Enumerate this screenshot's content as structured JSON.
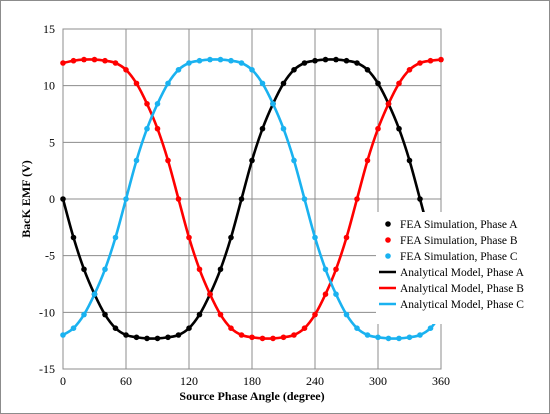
{
  "chart_data": {
    "type": "line",
    "title": "",
    "xlabel": "Source Phase Angle (degree)",
    "ylabel": "BacK EMF (V)",
    "xlim": [
      0,
      360
    ],
    "ylim": [
      -15,
      15
    ],
    "x_ticks": [
      0,
      60,
      120,
      180,
      240,
      300,
      360
    ],
    "x_tick_labels": [
      "0",
      "60",
      "120",
      "180",
      "240",
      "300",
      "360"
    ],
    "y_ticks": [
      15,
      10,
      5,
      0,
      -5,
      -10,
      -15
    ],
    "y_tick_labels": [
      "15",
      "10",
      "5",
      "0",
      "-5",
      "-10",
      "-15"
    ],
    "grid": true,
    "legend_position": "lower-right",
    "x": [
      0,
      10,
      20,
      30,
      40,
      50,
      60,
      70,
      80,
      90,
      100,
      110,
      120,
      130,
      140,
      150,
      160,
      170,
      180,
      190,
      200,
      210,
      220,
      230,
      240,
      250,
      260,
      270,
      280,
      290,
      300,
      310,
      320,
      330,
      340,
      350,
      360
    ],
    "series": [
      {
        "name": "FEA Simulation, Phase A",
        "style": "markers",
        "color": "#000000",
        "values": [
          0,
          -3.4,
          -6.2,
          -8.4,
          -10.2,
          -11.4,
          -12,
          -12.2,
          -12.3,
          -12.3,
          -12.2,
          -12,
          -11.4,
          -10.2,
          -8.4,
          -6.2,
          -3.4,
          0,
          3.4,
          6.2,
          8.4,
          10.2,
          11.4,
          12,
          12.2,
          12.3,
          12.3,
          12.2,
          12,
          11.4,
          10.2,
          8.4,
          6.2,
          3.4,
          0,
          -3.4,
          -6.2
        ]
      },
      {
        "name": "FEA Simulation, Phase B",
        "style": "markers",
        "color": "#ff0000",
        "values": [
          12,
          12.2,
          12.3,
          12.3,
          12.2,
          12,
          11.4,
          10.2,
          8.4,
          6.2,
          3.4,
          0,
          -3.4,
          -6.2,
          -8.4,
          -10.2,
          -11.4,
          -12,
          -12.2,
          -12.3,
          -12.3,
          -12.2,
          -12,
          -11.4,
          -10.2,
          -8.4,
          -6.2,
          -3.4,
          0,
          3.4,
          6.2,
          8.4,
          10.2,
          11.4,
          12,
          12.2,
          12.3
        ]
      },
      {
        "name": "FEA Simulation, Phase C",
        "style": "markers",
        "color": "#1ab2f0",
        "values": [
          -12,
          -11.4,
          -10.2,
          -8.4,
          -6.2,
          -3.4,
          0,
          3.4,
          6.2,
          8.4,
          10.2,
          11.4,
          12,
          12.2,
          12.3,
          12.3,
          12.2,
          12,
          11.4,
          10.2,
          8.4,
          6.2,
          3.4,
          0,
          -3.4,
          -6.2,
          -8.4,
          -10.2,
          -11.4,
          -12,
          -12.2,
          -12.3,
          -12.3,
          -12.2,
          -12,
          -11.4,
          -10.2
        ]
      },
      {
        "name": "Analytical Model, Phase A",
        "style": "line",
        "color": "#000000",
        "values": [
          0,
          -3.4,
          -6.2,
          -8.4,
          -10.2,
          -11.4,
          -12,
          -12.2,
          -12.3,
          -12.3,
          -12.2,
          -12,
          -11.4,
          -10.2,
          -8.4,
          -6.2,
          -3.4,
          0,
          3.4,
          6.2,
          8.4,
          10.2,
          11.4,
          12,
          12.2,
          12.3,
          12.3,
          12.2,
          12,
          11.4,
          10.2,
          8.4,
          6.2,
          3.4,
          0,
          -3.4,
          -6.2
        ]
      },
      {
        "name": "Analytical Model, Phase B",
        "style": "line",
        "color": "#ff0000",
        "values": [
          12,
          12.2,
          12.3,
          12.3,
          12.2,
          12,
          11.4,
          10.2,
          8.4,
          6.2,
          3.4,
          0,
          -3.4,
          -6.2,
          -8.4,
          -10.2,
          -11.4,
          -12,
          -12.2,
          -12.3,
          -12.3,
          -12.2,
          -12,
          -11.4,
          -10.2,
          -8.4,
          -6.2,
          -3.4,
          0,
          3.4,
          6.2,
          8.4,
          10.2,
          11.4,
          12,
          12.2,
          12.3
        ]
      },
      {
        "name": "Analytical Model, Phase C",
        "style": "line",
        "color": "#1ab2f0",
        "values": [
          -12,
          -11.4,
          -10.2,
          -8.4,
          -6.2,
          -3.4,
          0,
          3.4,
          6.2,
          8.4,
          10.2,
          11.4,
          12,
          12.2,
          12.3,
          12.3,
          12.2,
          12,
          11.4,
          10.2,
          8.4,
          6.2,
          3.4,
          0,
          -3.4,
          -6.2,
          -8.4,
          -10.2,
          -11.4,
          -12,
          -12.2,
          -12.3,
          -12.3,
          -12.2,
          -12,
          -11.4,
          -10.2
        ]
      }
    ]
  }
}
